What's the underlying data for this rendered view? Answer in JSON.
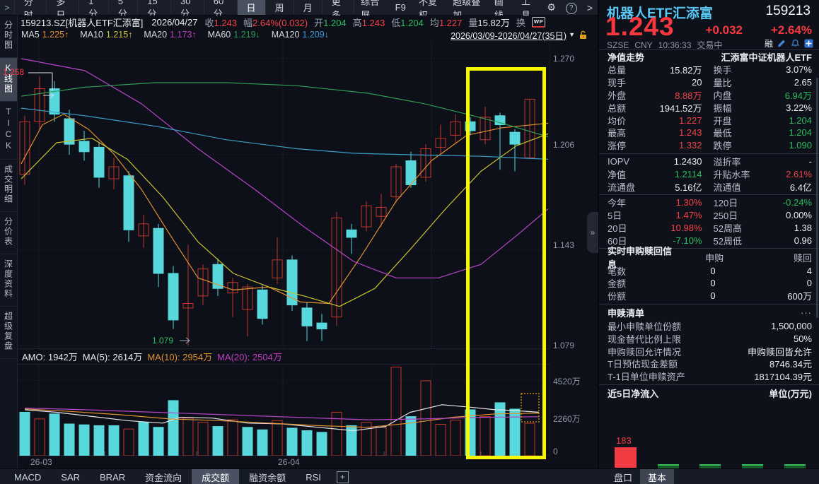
{
  "icons": {
    "gear": "⚙",
    "help": "?",
    "chevron_right": ">",
    "chevron_left": ">",
    "dropdown": "▼",
    "collapse": "»",
    "wp": "WP",
    "plus_tab": "+",
    "more_dots": "···"
  },
  "top_bar": {
    "periods": [
      "分时",
      "多日",
      "1分",
      "5分",
      "15分",
      "30分",
      "60分",
      "日",
      "周",
      "月",
      "更多"
    ],
    "selected_period": "日",
    "right_buttons": [
      "综合屏",
      "F9",
      "不复权",
      "超级叠加",
      "画线",
      "工具"
    ]
  },
  "info_bar": {
    "symbol": "159213.SZ[机器人ETF汇添富]",
    "date": "2026/04/27",
    "fields": [
      {
        "label": "收",
        "value": "1.243",
        "color": "r"
      },
      {
        "label": "幅",
        "value": "2.64%(0.032)",
        "color": "r"
      },
      {
        "label": "开",
        "value": "1.204",
        "color": "g"
      },
      {
        "label": "高",
        "value": "1.243",
        "color": "r"
      },
      {
        "label": "低",
        "value": "1.204",
        "color": "g"
      },
      {
        "label": "均",
        "value": "1.227",
        "color": "r"
      },
      {
        "label": "量",
        "value": "15.82万",
        "color": "w"
      },
      {
        "label": "换",
        "value": "",
        "color": "w"
      }
    ]
  },
  "ma_bar": {
    "items": [
      {
        "label": "MA5",
        "value": "1.225",
        "arrow": "↑",
        "color": "#e0902f"
      },
      {
        "label": "MA10",
        "value": "1.215",
        "arrow": "↑",
        "color": "#cdc52e"
      },
      {
        "label": "MA20",
        "value": "1.173",
        "arrow": "↑",
        "color": "#c03ec0"
      },
      {
        "label": "MA60",
        "value": "1.219",
        "arrow": "↓",
        "color": "#2f9e53"
      },
      {
        "label": "MA120",
        "value": "1.209",
        "arrow": "↓",
        "color": "#3f9bd8"
      }
    ],
    "date_range": "2026/03/09-2026/04/27(35日)"
  },
  "sidebar": {
    "items": [
      "分时图",
      "K线图",
      "TICK",
      "成交明细",
      "分价表",
      "深度资料",
      "超级复盘"
    ],
    "selected": "K线图"
  },
  "chart": {
    "price_axis_labels": [
      "1.270",
      "1.206",
      "1.143",
      "1.079"
    ],
    "volume_axis_labels": [
      "4520万",
      "2260万",
      "0"
    ],
    "x_labels": [
      "26-03",
      "26-04"
    ],
    "high_marker": "1.258",
    "low_marker": "1.079",
    "amo_line": [
      {
        "label": "AMO:",
        "value": "1942万",
        "color": "#e5e9f0"
      },
      {
        "label": "MA(5):",
        "value": "2614万",
        "color": "#e5e9f0"
      },
      {
        "label": "MA(10):",
        "value": "2954万",
        "color": "#e0902f"
      },
      {
        "label": "MA(20):",
        "value": "2504万",
        "color": "#c03ec0"
      }
    ]
  },
  "chart_data": {
    "type": "candlestick",
    "date_range": "2026/03/09-2026/04/27",
    "price_axis_ticks": [
      1.27,
      1.206,
      1.143,
      1.079
    ],
    "volume_axis_ticks_wan": [
      4520,
      2260,
      0
    ],
    "high_label": 1.258,
    "low_label": 1.079,
    "colors": {
      "up": "#c0362c",
      "down": "#57d8dc"
    },
    "candles": [
      [
        1.193,
        1.232,
        1.186,
        1.228,
        2600,
        0
      ],
      [
        1.228,
        1.258,
        1.222,
        1.25,
        2200,
        1
      ],
      [
        1.25,
        1.255,
        1.228,
        1.233,
        2500,
        0
      ],
      [
        1.23,
        1.236,
        1.206,
        1.213,
        1900,
        0
      ],
      [
        1.215,
        1.222,
        1.202,
        1.208,
        1850,
        0
      ],
      [
        1.211,
        1.214,
        1.184,
        1.191,
        1800,
        0
      ],
      [
        1.19,
        1.204,
        1.183,
        1.198,
        1800,
        0
      ],
      [
        1.192,
        1.195,
        1.148,
        1.156,
        1600,
        1
      ],
      [
        1.152,
        1.166,
        1.144,
        1.16,
        2000,
        0
      ],
      [
        1.157,
        1.16,
        1.118,
        1.127,
        1700,
        0
      ],
      [
        1.127,
        1.132,
        1.09,
        1.096,
        3300,
        0
      ],
      [
        1.104,
        1.146,
        1.079,
        1.107,
        2250,
        1
      ],
      [
        1.112,
        1.133,
        1.106,
        1.13,
        2000,
        1
      ],
      [
        1.133,
        1.137,
        1.112,
        1.117,
        1750,
        0
      ],
      [
        1.114,
        1.124,
        1.098,
        1.121,
        2150,
        1
      ],
      [
        1.103,
        1.12,
        1.085,
        1.118,
        1700,
        0
      ],
      [
        1.116,
        1.119,
        1.093,
        1.097,
        1550,
        0
      ],
      [
        1.124,
        1.151,
        1.12,
        1.136,
        2100,
        1
      ],
      [
        1.136,
        1.139,
        1.102,
        1.106,
        1650,
        0
      ],
      [
        1.104,
        1.108,
        1.082,
        1.092,
        1500,
        0
      ],
      [
        1.094,
        1.1,
        1.082,
        1.09,
        1400,
        0
      ],
      [
        1.098,
        1.168,
        1.092,
        1.164,
        2600,
        1
      ],
      [
        1.156,
        1.16,
        1.14,
        1.151,
        1800,
        0
      ],
      [
        1.158,
        1.175,
        1.155,
        1.172,
        2000,
        1
      ],
      [
        1.165,
        1.18,
        1.158,
        1.171,
        1700,
        1
      ],
      [
        1.178,
        1.2,
        1.174,
        1.198,
        5300,
        1
      ],
      [
        1.202,
        1.208,
        1.184,
        1.186,
        2340,
        0
      ],
      [
        1.191,
        1.213,
        1.188,
        1.21,
        4480,
        1
      ],
      [
        1.211,
        1.226,
        1.206,
        1.217,
        1880,
        1
      ],
      [
        1.219,
        1.233,
        1.214,
        1.228,
        2130,
        1
      ],
      [
        1.228,
        1.231,
        1.219,
        1.222,
        2750,
        0
      ],
      [
        1.216,
        1.238,
        1.213,
        1.231,
        2340,
        1
      ],
      [
        1.232,
        1.234,
        1.196,
        1.226,
        3170,
        0
      ],
      [
        1.221,
        1.223,
        1.195,
        1.213,
        2790,
        0
      ],
      [
        1.204,
        1.243,
        1.204,
        1.243,
        1942,
        1
      ]
    ],
    "overlays_price": [
      {
        "name": "MA5",
        "color": "#e0902f",
        "points": [
          [
            30,
            1.2
          ],
          [
            60,
            1.226
          ],
          [
            90,
            1.233
          ],
          [
            125,
            1.223
          ],
          [
            160,
            1.207
          ],
          [
            200,
            1.183
          ],
          [
            240,
            1.153
          ],
          [
            280,
            1.124
          ],
          [
            330,
            1.116
          ],
          [
            380,
            1.118
          ],
          [
            425,
            1.108
          ],
          [
            465,
            1.107
          ],
          [
            510,
            1.138
          ],
          [
            560,
            1.175
          ],
          [
            610,
            1.202
          ],
          [
            660,
            1.219
          ],
          [
            710,
            1.224
          ],
          [
            775,
            1.227
          ]
        ]
      },
      {
        "name": "MA10",
        "color": "#cdc52e",
        "points": [
          [
            30,
            1.19
          ],
          [
            80,
            1.214
          ],
          [
            130,
            1.217
          ],
          [
            180,
            1.203
          ],
          [
            230,
            1.178
          ],
          [
            280,
            1.148
          ],
          [
            330,
            1.127
          ],
          [
            380,
            1.118
          ],
          [
            430,
            1.112
          ],
          [
            480,
            1.105
          ],
          [
            530,
            1.117
          ],
          [
            580,
            1.143
          ],
          [
            630,
            1.17
          ],
          [
            680,
            1.195
          ],
          [
            730,
            1.212
          ],
          [
            775,
            1.22
          ]
        ]
      },
      {
        "name": "MA20",
        "color": "#b645c8",
        "points": [
          [
            30,
            1.27
          ],
          [
            120,
            1.262
          ],
          [
            200,
            1.24
          ],
          [
            280,
            1.21
          ],
          [
            360,
            1.183
          ],
          [
            430,
            1.158
          ],
          [
            500,
            1.135
          ],
          [
            560,
            1.124
          ],
          [
            620,
            1.124
          ],
          [
            680,
            1.133
          ],
          [
            730,
            1.152
          ],
          [
            775,
            1.17
          ]
        ]
      },
      {
        "name": "MA60",
        "color": "#2f9e53",
        "points": [
          [
            30,
            1.245
          ],
          [
            120,
            1.251
          ],
          [
            220,
            1.254
          ],
          [
            320,
            1.254
          ],
          [
            420,
            1.252
          ],
          [
            520,
            1.247
          ],
          [
            600,
            1.24
          ],
          [
            660,
            1.233
          ],
          [
            710,
            1.227
          ],
          [
            775,
            1.218
          ]
        ]
      },
      {
        "name": "MA120",
        "color": "#3a9ec6",
        "points": [
          [
            30,
            1.237
          ],
          [
            120,
            1.232
          ],
          [
            220,
            1.225
          ],
          [
            320,
            1.216
          ],
          [
            420,
            1.21
          ],
          [
            500,
            1.207
          ],
          [
            580,
            1.206
          ],
          [
            680,
            1.205
          ],
          [
            775,
            1.203
          ]
        ]
      }
    ],
    "overlays_volume": [
      {
        "name": "VMA5",
        "color": "#e6e6e6",
        "points": [
          [
            35,
            2750
          ],
          [
            80,
            2600
          ],
          [
            130,
            2350
          ],
          [
            180,
            2100
          ],
          [
            230,
            1950
          ],
          [
            255,
            2300
          ],
          [
            300,
            2250
          ],
          [
            350,
            1950
          ],
          [
            400,
            1900
          ],
          [
            450,
            1700
          ],
          [
            500,
            1500
          ],
          [
            545,
            1750
          ],
          [
            580,
            2600
          ],
          [
            625,
            3050
          ],
          [
            665,
            2900
          ],
          [
            700,
            2750
          ],
          [
            730,
            2700
          ],
          [
            762,
            2600
          ]
        ]
      },
      {
        "name": "VMA10",
        "color": "#e0902f",
        "points": [
          [
            35,
            2800
          ],
          [
            100,
            2650
          ],
          [
            170,
            2450
          ],
          [
            240,
            2200
          ],
          [
            310,
            2100
          ],
          [
            380,
            1950
          ],
          [
            450,
            1800
          ],
          [
            520,
            1700
          ],
          [
            580,
            1950
          ],
          [
            640,
            2300
          ],
          [
            700,
            2500
          ],
          [
            762,
            2550
          ]
        ]
      },
      {
        "name": "VMA20",
        "color": "#b645c8",
        "points": [
          [
            35,
            2850
          ],
          [
            120,
            2750
          ],
          [
            220,
            2600
          ],
          [
            320,
            2450
          ],
          [
            420,
            2300
          ],
          [
            520,
            2150
          ],
          [
            600,
            2200
          ],
          [
            680,
            2300
          ],
          [
            762,
            2330
          ]
        ]
      }
    ],
    "projection_box_wan": [
      2010,
      3690
    ],
    "highlight_box_candle_range": [
      30,
      34
    ]
  },
  "panel": {
    "header": {
      "name": "机器人ETF汇添富",
      "code": "159213",
      "price": "1.243",
      "change": "+0.032",
      "change_pct": "+2.64%",
      "exchange": "SZSE",
      "currency": "CNY",
      "time": "10:36:33",
      "state": "交易中",
      "margin_flag": "融"
    },
    "nav_header": {
      "left": "净值走势",
      "right": "汇添富中证机器人ETF"
    },
    "stats": [
      [
        [
          "总量",
          "15.82万",
          "w"
        ],
        [
          "换手",
          "3.07%",
          "w"
        ]
      ],
      [
        [
          "现手",
          "20",
          "w"
        ],
        [
          "量比",
          "2.65",
          "w"
        ]
      ],
      [
        [
          "外盘",
          "8.88万",
          "r"
        ],
        [
          "内盘",
          "6.94万",
          "g"
        ]
      ],
      [
        [
          "总额",
          "1941.52万",
          "w"
        ],
        [
          "振幅",
          "3.22%",
          "w"
        ]
      ],
      [
        [
          "均价",
          "1.227",
          "r"
        ],
        [
          "开盘",
          "1.204",
          "g"
        ]
      ],
      [
        [
          "最高",
          "1.243",
          "r"
        ],
        [
          "最低",
          "1.204",
          "g"
        ]
      ],
      [
        [
          "涨停",
          "1.332",
          "r"
        ],
        [
          "跌停",
          "1.090",
          "g"
        ]
      ]
    ],
    "valuation": [
      [
        [
          "IOPV",
          "1.2430",
          "w"
        ],
        [
          "溢折率",
          "-",
          "w"
        ]
      ],
      [
        [
          "净值",
          "1.2114",
          "g"
        ],
        [
          "升贴水率",
          "2.61%",
          "r"
        ]
      ],
      [
        [
          "流通盘",
          "5.16亿",
          "w"
        ],
        [
          "流通值",
          "6.4亿",
          "w"
        ]
      ]
    ],
    "performance": [
      [
        [
          "今年",
          "1.30%",
          "r"
        ],
        [
          "120日",
          "-0.24%",
          "g"
        ]
      ],
      [
        [
          "5日",
          "1.47%",
          "r"
        ],
        [
          "250日",
          "0.00%",
          "w"
        ]
      ],
      [
        [
          "20日",
          "10.98%",
          "r"
        ],
        [
          "52周高",
          "1.38",
          "w"
        ]
      ],
      [
        [
          "60日",
          "-7.10%",
          "g"
        ],
        [
          "52周低",
          "0.96",
          "w"
        ]
      ]
    ],
    "subscription": {
      "title": "实时申购赎回信息",
      "col1": "申购",
      "col2": "赎回",
      "rows": [
        [
          "笔数",
          "0",
          "4"
        ],
        [
          "金额",
          "0",
          "0"
        ],
        [
          "份额",
          "0",
          "600万"
        ]
      ]
    },
    "redemption_list": {
      "title": "申赎清单",
      "rows": [
        [
          "最小申赎单位份额",
          "1,500,000"
        ],
        [
          "现金替代比例上限",
          "50%"
        ],
        [
          "申购赎回允许情况",
          "申购赎回皆允许"
        ],
        [
          "T日预估现金差额",
          "8746.34元"
        ],
        [
          "T-1日单位申赎资产",
          "1817104.39元"
        ]
      ]
    },
    "flow": {
      "title": "近5日净流入",
      "unit": "单位(万元)",
      "bars": [
        {
          "label": "183",
          "dir": "in"
        },
        {
          "label": "",
          "dir": "out"
        },
        {
          "label": "",
          "dir": "out"
        },
        {
          "label": "",
          "dir": "out"
        },
        {
          "label": "",
          "dir": "out"
        }
      ]
    },
    "tabs": [
      "盘口",
      "基本"
    ],
    "selected_tab": "基本"
  },
  "bottom_bar": {
    "indicator_tabs": [
      "MACD",
      "SAR",
      "BRAR",
      "资金流向",
      "成交额",
      "融资余额",
      "RSI"
    ],
    "selected": "成交额"
  }
}
